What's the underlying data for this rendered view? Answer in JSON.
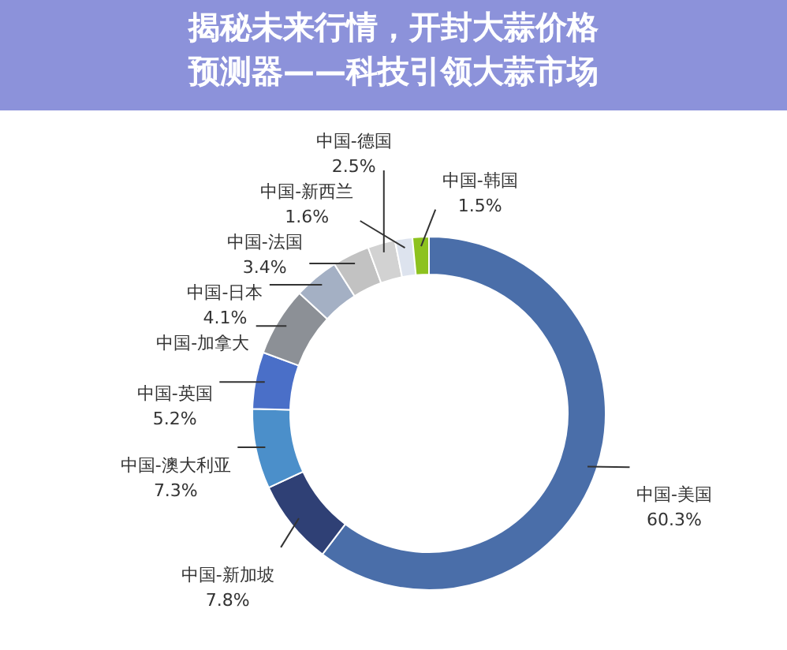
{
  "chart_data": {
    "type": "donut",
    "title": "揭秘未来行情，开封大蒜价格预测器——科技引领大蒜市场",
    "categories": [
      "中国-美国",
      "中国-新加坡",
      "中国-澳大利亚",
      "中国-英国",
      "中国-加拿大",
      "中国-日本",
      "中国-法国",
      "中国-德国",
      "中国-新西兰",
      "中国-韩国"
    ],
    "values": [
      60.3,
      7.8,
      7.3,
      5.2,
      6.3,
      4.1,
      3.4,
      2.5,
      1.6,
      1.5
    ],
    "value_labels": [
      "60.3%",
      "7.8%",
      "7.3%",
      "5.2%",
      null,
      "4.1%",
      "3.4%",
      "2.5%",
      "1.6%",
      "1.5%"
    ],
    "colors": [
      "#4a6ea9",
      "#2f4075",
      "#4b8fca",
      "#4a6fc8",
      "#8c9096",
      "#a4b0c4",
      "#c2c2c2",
      "#d2d2d2",
      "#dde3ee",
      "#8dc21f"
    ]
  }
}
